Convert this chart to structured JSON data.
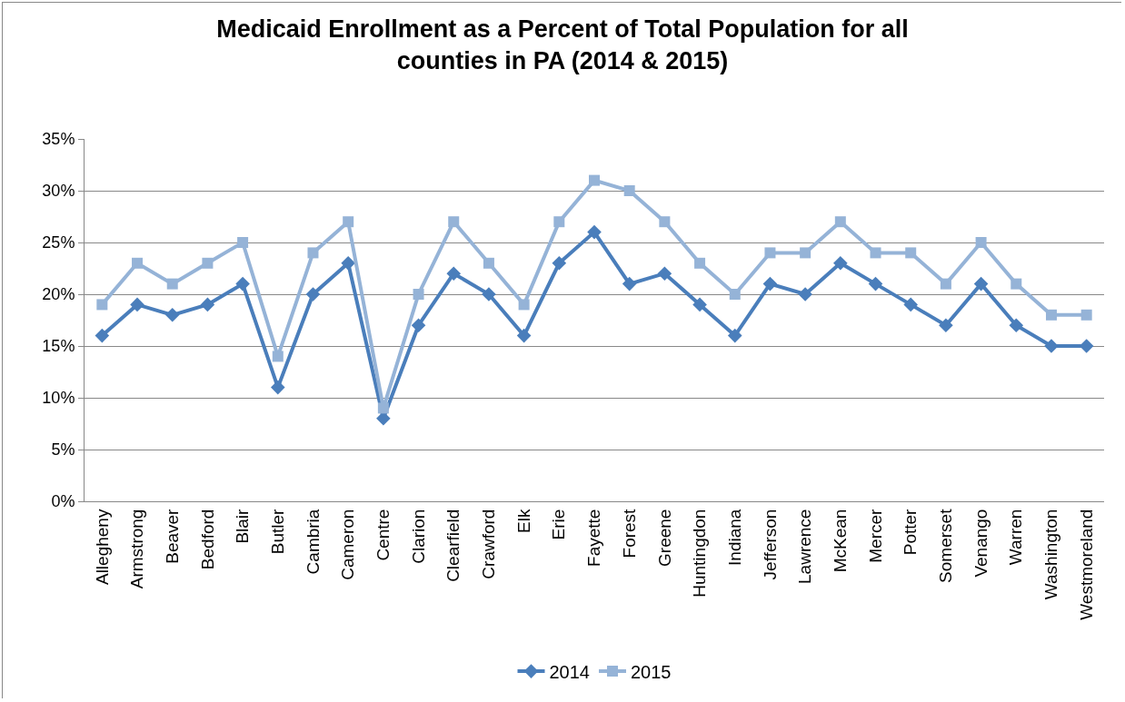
{
  "chart_data": {
    "type": "line",
    "title": "Medicaid Enrollment as a Percent of Total Population for all\ncounties in PA (2014 & 2015)",
    "categories": [
      "Allegheny",
      "Armstrong",
      "Beaver",
      "Bedford",
      "Blair",
      "Butler",
      "Cambria",
      "Cameron",
      "Centre",
      "Clarion",
      "Clearfield",
      "Crawford",
      "Elk",
      "Erie",
      "Fayette",
      "Forest",
      "Greene",
      "Huntingdon",
      "Indiana",
      "Jefferson",
      "Lawrence",
      "McKean",
      "Mercer",
      "Potter",
      "Somerset",
      "Venango",
      "Warren",
      "Washington",
      "Westmoreland"
    ],
    "series": [
      {
        "name": "2014",
        "color": "#4a7ebb",
        "marker": "diamond",
        "values": [
          16,
          19,
          18,
          19,
          21,
          11,
          20,
          23,
          8,
          17,
          22,
          20,
          16,
          23,
          26,
          21,
          22,
          19,
          16,
          21,
          20,
          23,
          21,
          19,
          17,
          21,
          17,
          15,
          15
        ]
      },
      {
        "name": "2015",
        "color": "#95b3d7",
        "marker": "square",
        "values": [
          19,
          23,
          21,
          23,
          25,
          14,
          24,
          27,
          9,
          20,
          27,
          23,
          19,
          27,
          31,
          30,
          27,
          23,
          20,
          24,
          24,
          27,
          24,
          24,
          21,
          25,
          21,
          18,
          18
        ]
      }
    ],
    "ylim": [
      0,
      35
    ],
    "yticks": [
      {
        "value": 0,
        "label": "0%"
      },
      {
        "value": 5,
        "label": "5%"
      },
      {
        "value": 10,
        "label": "10%"
      },
      {
        "value": 15,
        "label": "15%"
      },
      {
        "value": 20,
        "label": "20%"
      },
      {
        "value": 25,
        "label": "25%"
      },
      {
        "value": 30,
        "label": "30%"
      },
      {
        "value": 35,
        "label": "35%"
      }
    ],
    "grid": "y",
    "legend": "bottom",
    "line_style": "solid"
  }
}
